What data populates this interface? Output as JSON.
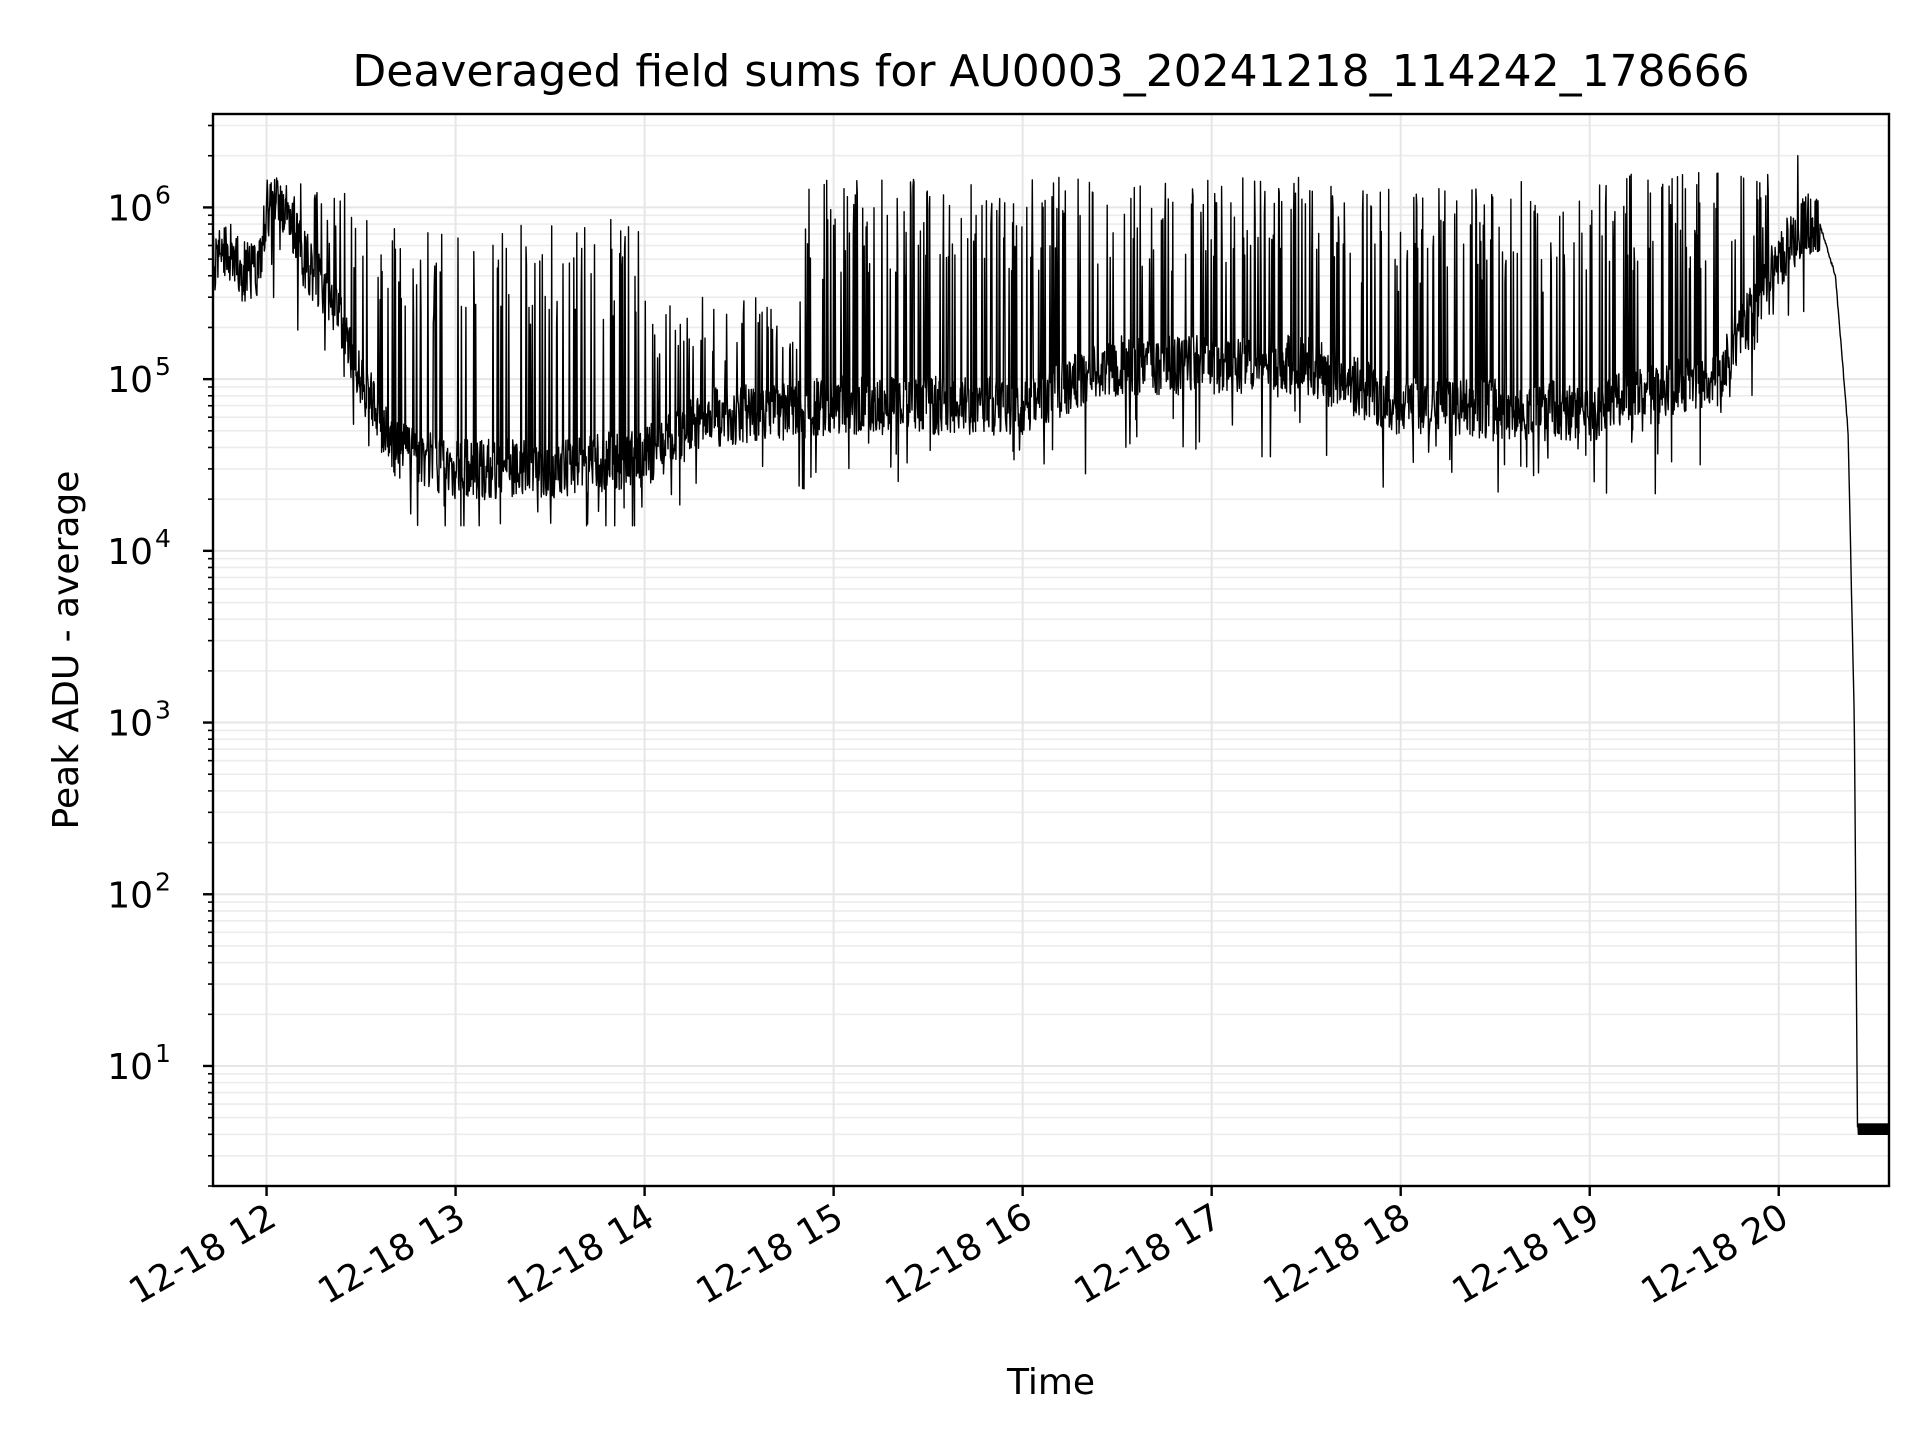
{
  "chart_data": {
    "type": "line",
    "title": "Deaveraged field sums for AU0003_20241218_114242_178666",
    "xlabel": "Time",
    "ylabel": "Peak ADU - average",
    "yscale": "log",
    "ylim": [
      2,
      3500000
    ],
    "xlim": [
      "2024-12-18 11:43",
      "2024-12-18 20:35"
    ],
    "grid": true,
    "legend": "none",
    "line_color": "#000000",
    "x_ticks": [
      "12-18 12",
      "12-18 13",
      "12-18 14",
      "12-18 15",
      "12-18 16",
      "12-18 17",
      "12-18 18",
      "12-18 19",
      "12-18 20"
    ],
    "y_ticks": [
      {
        "base": "10",
        "exp": "1",
        "value": 10
      },
      {
        "base": "10",
        "exp": "2",
        "value": 100
      },
      {
        "base": "10",
        "exp": "3",
        "value": 1000
      },
      {
        "base": "10",
        "exp": "4",
        "value": 10000
      },
      {
        "base": "10",
        "exp": "5",
        "value": 100000
      },
      {
        "base": "10",
        "exp": "6",
        "value": 1000000
      }
    ],
    "series": [
      {
        "baseline": [
          {
            "x": "2024-12-18 11:43",
            "y": 450000
          },
          {
            "x": "2024-12-18 11:47",
            "y": 600000
          },
          {
            "x": "2024-12-18 11:52",
            "y": 420000
          },
          {
            "x": "2024-12-18 11:58",
            "y": 450000
          },
          {
            "x": "2024-12-18 12:00",
            "y": 1000000
          },
          {
            "x": "2024-12-18 12:05",
            "y": 1100000
          },
          {
            "x": "2024-12-18 12:12",
            "y": 500000
          },
          {
            "x": "2024-12-18 12:20",
            "y": 300000
          },
          {
            "x": "2024-12-18 12:30",
            "y": 100000
          },
          {
            "x": "2024-12-18 12:40",
            "y": 40000
          },
          {
            "x": "2024-12-18 13:00",
            "y": 30000
          },
          {
            "x": "2024-12-18 13:30",
            "y": 30000
          },
          {
            "x": "2024-12-18 14:00",
            "y": 35000
          },
          {
            "x": "2024-12-18 14:20",
            "y": 60000
          },
          {
            "x": "2024-12-18 15:00",
            "y": 70000
          },
          {
            "x": "2024-12-18 16:00",
            "y": 70000
          },
          {
            "x": "2024-12-18 16:30",
            "y": 120000
          },
          {
            "x": "2024-12-18 17:30",
            "y": 120000
          },
          {
            "x": "2024-12-18 18:00",
            "y": 70000
          },
          {
            "x": "2024-12-18 19:00",
            "y": 65000
          },
          {
            "x": "2024-12-18 19:40",
            "y": 100000
          },
          {
            "x": "2024-12-18 20:00",
            "y": 500000
          },
          {
            "x": "2024-12-18 20:08",
            "y": 800000
          },
          {
            "x": "2024-12-18 20:13",
            "y": 800000
          },
          {
            "x": "2024-12-18 20:18",
            "y": 400000
          },
          {
            "x": "2024-12-18 20:22",
            "y": 50000
          },
          {
            "x": "2024-12-18 20:24",
            "y": 1000
          },
          {
            "x": "2024-12-18 20:25",
            "y": 4
          },
          {
            "x": "2024-12-18 20:35",
            "y": 4
          }
        ],
        "spike_top": [
          {
            "from": "2024-12-18 11:43",
            "to": "2024-12-18 12:00",
            "y": 600000
          },
          {
            "from": "2024-12-18 12:00",
            "to": "2024-12-18 12:25",
            "y": 1400000
          },
          {
            "from": "2024-12-18 12:25",
            "to": "2024-12-18 14:00",
            "y": 900000
          },
          {
            "from": "2024-12-18 14:00",
            "to": "2024-12-18 14:50",
            "y": 300000
          },
          {
            "from": "2024-12-18 14:50",
            "to": "2024-12-18 19:00",
            "y": 1500000
          },
          {
            "from": "2024-12-18 19:00",
            "to": "2024-12-18 20:00",
            "y": 1600000
          }
        ],
        "peak_max": {
          "x": "2024-12-18 20:06",
          "y": 2000000
        },
        "floor_min": 14000
      }
    ]
  }
}
